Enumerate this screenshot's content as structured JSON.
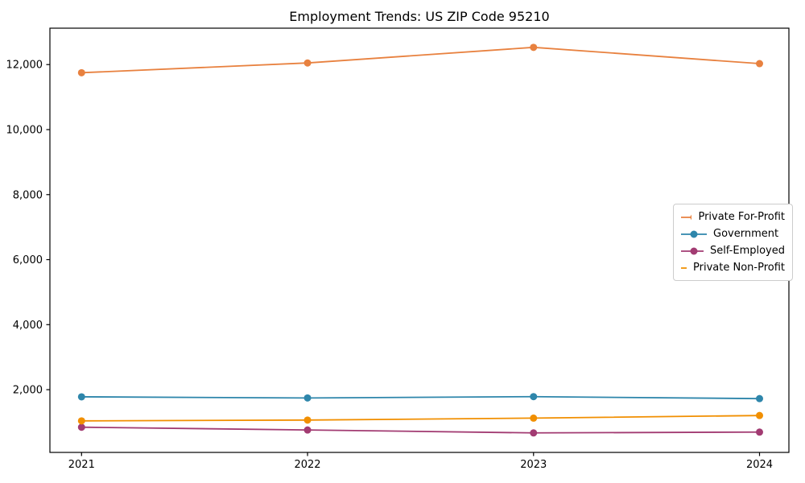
{
  "chart_data": {
    "type": "line",
    "title": "Employment Trends: US ZIP Code 95210",
    "categories": [
      "2021",
      "2022",
      "2023",
      "2024"
    ],
    "series": [
      {
        "name": "Private For-Profit",
        "color": "#e8813f",
        "values": [
          11750,
          12050,
          12530,
          12030
        ]
      },
      {
        "name": "Government",
        "color": "#2e86ab",
        "values": [
          1780,
          1745,
          1785,
          1725
        ]
      },
      {
        "name": "Self-Employed",
        "color": "#a23b72",
        "values": [
          845,
          760,
          670,
          695
        ]
      },
      {
        "name": "Private Non-Profit",
        "color": "#f18f01",
        "values": [
          1040,
          1065,
          1125,
          1205
        ]
      }
    ],
    "y_ticks": [
      2000,
      4000,
      6000,
      8000,
      10000,
      12000
    ],
    "y_tick_labels": [
      "2,000",
      "4,000",
      "6,000",
      "8,000",
      "10,000",
      "12,000"
    ],
    "ylim": [
      70,
      13120
    ],
    "xlabel": "",
    "ylabel": "",
    "grid": false,
    "legend_position": "right-middle",
    "axis_color": "#000000",
    "tick_label_color": "#000000",
    "background_color": "#ffffff"
  }
}
